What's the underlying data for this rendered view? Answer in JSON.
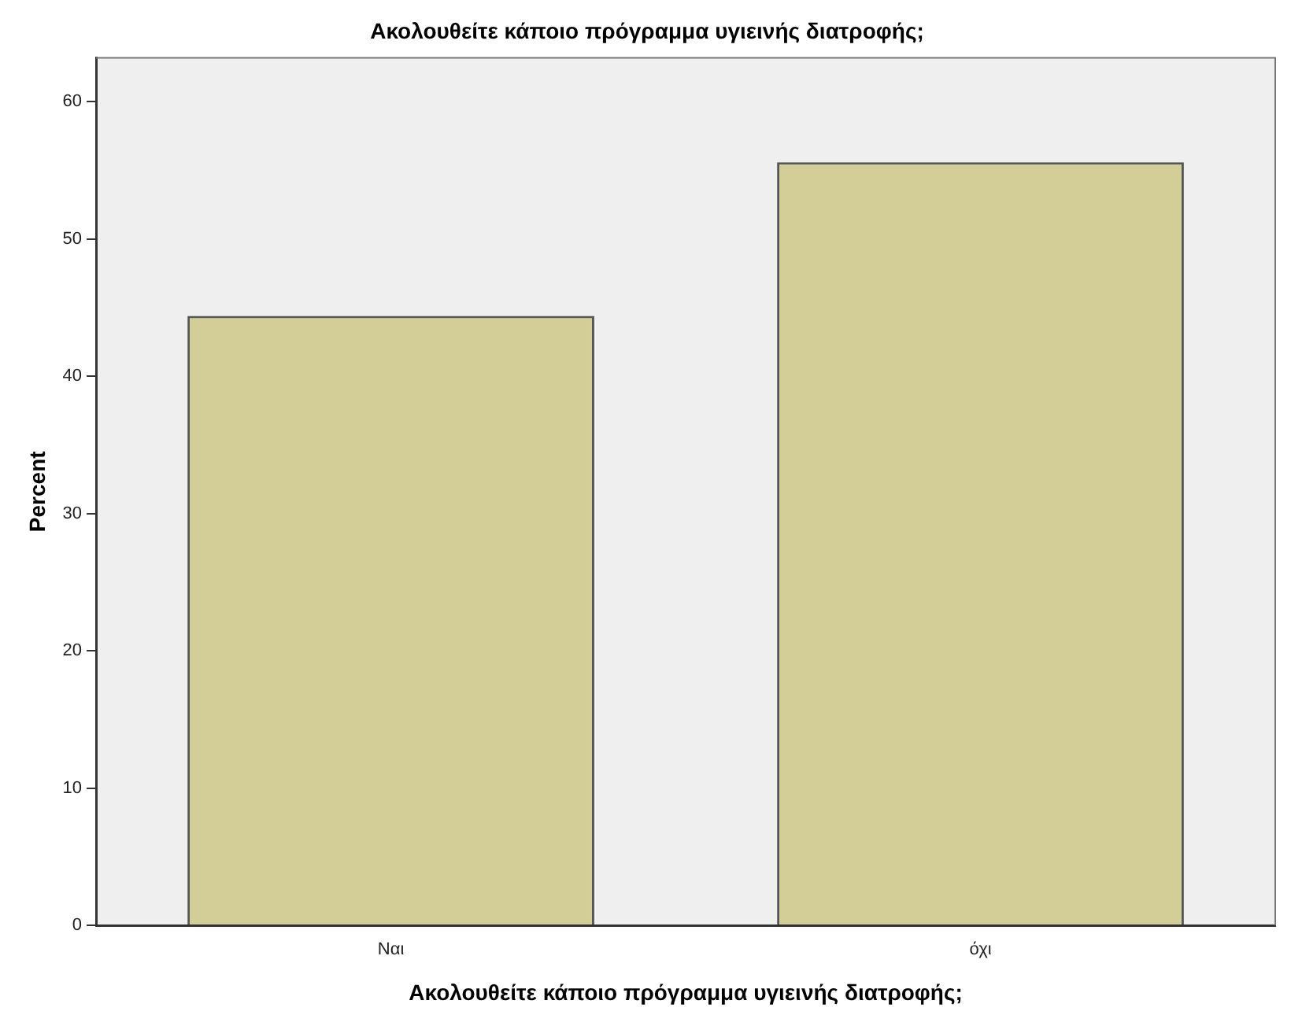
{
  "chart_data": {
    "type": "bar",
    "title": "Ακολουθείτε κάποιο πρόγραμμα υγιεινής διατροφής;",
    "xlabel": "Ακολουθείτε κάποιο πρόγραμμα υγιεινής διατροφής;",
    "ylabel": "Percent",
    "categories": [
      "Ναι",
      "όχι"
    ],
    "values": [
      44.4,
      55.6
    ],
    "color": "#d3cd98",
    "ylim": [
      0,
      63.2
    ],
    "yticks": [
      0,
      10,
      20,
      30,
      40,
      50,
      60
    ],
    "grid": false,
    "legend": false
  }
}
